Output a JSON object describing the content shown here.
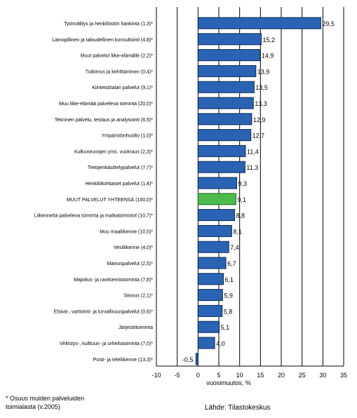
{
  "chart_data": {
    "type": "bar",
    "orientation": "horizontal",
    "categories": [
      "Työnvälitys ja henkilöstön hankinta (1,3)*",
      "Lainopillinen ja taloudellinen konsultointi (4,8)*",
      "Muut palvelut liike-elämälle (2,2)*",
      "Tutkimus ja kehittäminen (0,4)*",
      "Kiinteistöalan palvelut (9,1)*",
      "Muu liike-elämää palveleva toiminta (20,0)*",
      "Tekninen palvelu, testaus ja analysointi (6,5)*",
      "Ympäristönhuolto (1,0)*",
      "Kulkuneuvojen yms. vuokraus (2,3)*",
      "Tietojenkäsittelypalvelut (7,7)*",
      "Henkilökohtaiset palvelut (1,4)*",
      "MUUT PALVELUT YHTEENSÄ (100,0)*",
      "Liikennettä palveleva toiminta ja matkatoimistot (10,7)*",
      "Muu maaliikenne (10,5)*",
      "Vesiliikenne (4,0)*",
      "Mainospalvelut (2,5)*",
      "Majoitus- ja ravitsemistoiminta (7,8)*",
      "Siivous (2,1)*",
      "Etsivä-, vartiointi- ja turvallisuuspalvelut (0,6)*",
      "Järjestötoiminta",
      "Virkistys-, kulttuuri- ja urheilutoiminta (7,0)*",
      "Posti- ja teleliikenne (13,3)*"
    ],
    "values": [
      29.5,
      15.2,
      14.9,
      13.9,
      13.5,
      13.3,
      12.9,
      12.7,
      11.4,
      11.3,
      9.3,
      9.1,
      8.8,
      8.1,
      7.4,
      6.7,
      6.1,
      5.9,
      5.8,
      5.1,
      4.0,
      -0.5
    ],
    "value_labels": [
      "29,5",
      "15,2",
      "14,9",
      "13,9",
      "13,5",
      "13,3",
      "12,9",
      "12,7",
      "11,4",
      "11,3",
      "9,3",
      "9,1",
      "8,8",
      "8,1",
      "7,4",
      "6,7",
      "6,1",
      "5,9",
      "5,8",
      "5,1",
      "4,0",
      "-0,5"
    ],
    "highlight_index": 11,
    "xlabel": "vuosimuutos, %",
    "xlim": [
      -10,
      35
    ],
    "xticks": [
      -10,
      -5,
      0,
      5,
      10,
      15,
      20,
      25,
      30,
      35
    ],
    "grid": "vertical",
    "colors": {
      "bar": "#2a63b3",
      "bar_edge": "#0d2a5a",
      "highlight": "#4cbb4c",
      "highlight_edge": "#1f6b1f",
      "grid": "#000000"
    }
  },
  "footnote": {
    "line1": "* Osuus muiden palveluiden",
    "line2": "toimialasta (v.2005)"
  },
  "source": "Lähde: Tilastokeskus"
}
